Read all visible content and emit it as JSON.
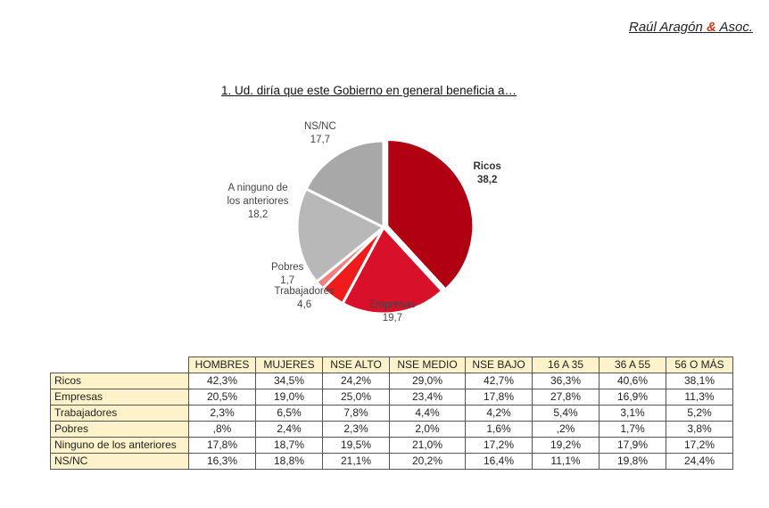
{
  "brand": {
    "name": "Raúl Aragón",
    "amp": "&",
    "suffix": "Asoc."
  },
  "colors": {
    "ricos": "#b00012",
    "empresas": "#d8102a",
    "trabajadores": "#f01c1c",
    "pobres": "#f07f7f",
    "ninguno": "#b8b8b8",
    "nsnc": "#a8a8a8",
    "table_header_bg": "#fdf2c9"
  },
  "chart_data": {
    "type": "pie",
    "title": "1. Ud. diría que este Gobierno en general beneficia a…",
    "slices": [
      {
        "name": "Ricos",
        "value": 38.2,
        "label_lines": [
          "Ricos",
          "38,2"
        ]
      },
      {
        "name": "Empresas",
        "value": 19.7,
        "label_lines": [
          "Empresas",
          "19,7"
        ]
      },
      {
        "name": "Trabajadores",
        "value": 4.6,
        "label_lines": [
          "Trabajadores",
          "4,6"
        ]
      },
      {
        "name": "Pobres",
        "value": 1.7,
        "label_lines": [
          "Pobres",
          "1,7"
        ]
      },
      {
        "name": "A ninguno de los anteriores",
        "value": 18.2,
        "label_lines": [
          "A ninguno de",
          "los anteriores",
          "18,2"
        ]
      },
      {
        "name": "NS/NC",
        "value": 17.7,
        "label_lines": [
          "NS/NC",
          "17,7"
        ]
      }
    ]
  },
  "table": {
    "columns": [
      "HOMBRES",
      "MUJERES",
      "NSE ALTO",
      "NSE MEDIO",
      "NSE BAJO",
      "16 A 35",
      "36 A 55",
      "56 O MÁS"
    ],
    "rows": [
      {
        "label": "Ricos",
        "values": [
          "42,3%",
          "34,5%",
          "24,2%",
          "29,0%",
          "42,7%",
          "36,3%",
          "40,6%",
          "38,1%"
        ]
      },
      {
        "label": "Empresas",
        "values": [
          "20,5%",
          "19,0%",
          "25,0%",
          "23,4%",
          "17,8%",
          "27,8%",
          "16,9%",
          "11,3%"
        ]
      },
      {
        "label": "Trabajadores",
        "values": [
          "2,3%",
          "6,5%",
          "7,8%",
          "4,4%",
          "4,2%",
          "5,4%",
          "3,1%",
          "5,2%"
        ]
      },
      {
        "label": "Pobres",
        "values": [
          ",8%",
          "2,4%",
          "2,3%",
          "2,0%",
          "1,6%",
          ",2%",
          "1,7%",
          "3,8%"
        ]
      },
      {
        "label": "Ninguno de los anteriores",
        "values": [
          "17,8%",
          "18,7%",
          "19,5%",
          "21,0%",
          "17,2%",
          "19,2%",
          "17,9%",
          "17,2%"
        ]
      },
      {
        "label": "NS/NC",
        "values": [
          "16,3%",
          "18,8%",
          "21,1%",
          "20,2%",
          "16,4%",
          "11,1%",
          "19,8%",
          "24,4%"
        ]
      }
    ]
  }
}
